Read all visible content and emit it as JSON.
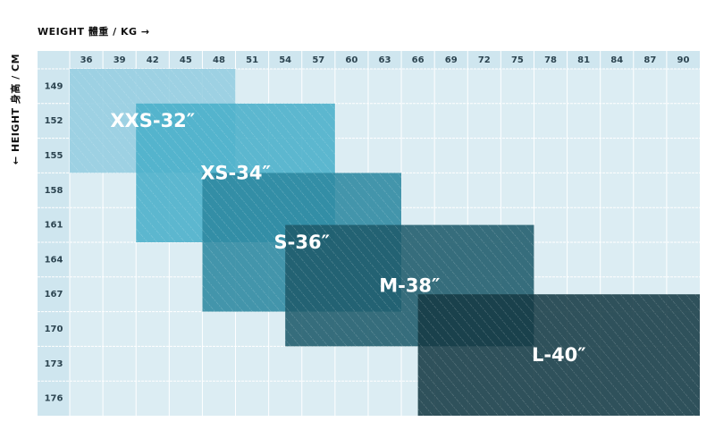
{
  "chart_data": {
    "type": "size-grid",
    "x_label": "WEIGHT 體重 / KG →",
    "y_label": "← HEIGHT 身高 / CM",
    "xlim": [
      34.5,
      91.5
    ],
    "ylim": [
      147.5,
      177.5
    ],
    "xticks": [
      36,
      39,
      42,
      45,
      48,
      51,
      54,
      57,
      60,
      63,
      66,
      69,
      72,
      75,
      78,
      81,
      84,
      87,
      90
    ],
    "yticks": [
      149,
      152,
      155,
      158,
      161,
      164,
      167,
      170,
      173,
      176
    ],
    "grid": true,
    "series": [
      {
        "name": "XXS-32″",
        "color": "#94cde0",
        "x": [
          34.5,
          49.5
        ],
        "y": [
          147.5,
          156.5
        ]
      },
      {
        "name": "XS-34″",
        "color": "#4aafc9",
        "x": [
          40.5,
          58.5
        ],
        "y": [
          150.5,
          162.5
        ]
      },
      {
        "name": "S-36″",
        "color": "#2e89a0",
        "x": [
          46.5,
          64.5
        ],
        "y": [
          156.5,
          168.5
        ]
      },
      {
        "name": "M-38″",
        "color": "#1f5b6b",
        "x": [
          54,
          76.5
        ],
        "y": [
          161,
          171.5
        ]
      },
      {
        "name": "L-40″",
        "color": "#173b45",
        "x": [
          66,
          91.5
        ],
        "y": [
          167,
          177.5
        ]
      }
    ]
  }
}
